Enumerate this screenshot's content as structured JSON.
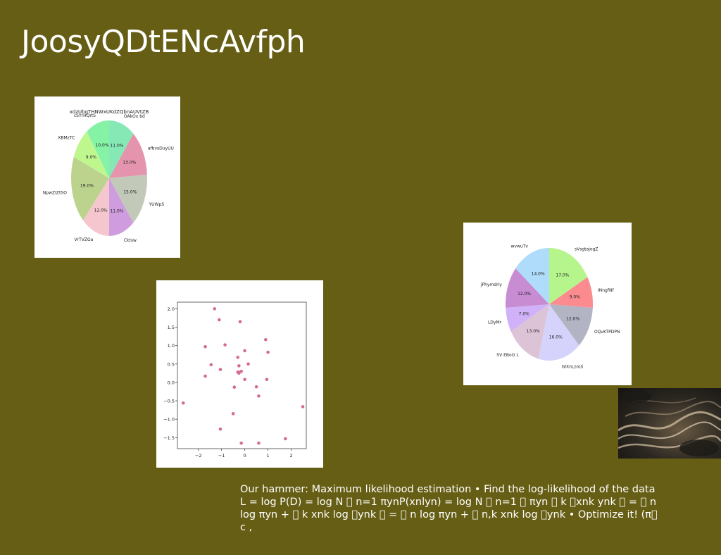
{
  "slide": {
    "title": "JoosyQDtENcAvfph",
    "body": "Our hammer: Maximum likelihood estimation • Find the log-likelihood of the data L = log P(D) = log N ￿ n=1 πynP(xnlyn) = log N ￿ n=1 ￿ πyn ￿ k ￿xnk ynk ￿ = ￿ n log πyn + ￿ k xnk log ￿ynk ￿ = ￿ n log πyn + ￿ n,k xnk log ￿ynk • Optimize it! (π￿ c ,"
  },
  "chart_data": [
    {
      "type": "pie",
      "title": "xdzUbgTHNWxUKdZQbnAUVtZB",
      "labels": [
        "OAkOx bd",
        "afbvsDuyUU",
        "YUWpS",
        "Cktsw",
        "VrTVZGa",
        "NpwZIZtSO",
        "XBMzTC",
        "cSYrHQrtS"
      ],
      "values": [
        11.0,
        13.0,
        15.0,
        11.0,
        12.0,
        19.0,
        9.0,
        10.0
      ],
      "autopct": [
        "11.0%",
        "13.0%",
        "15.0%",
        "11.0%",
        "12.0%",
        "19.0%",
        "9.0%",
        "10.0%"
      ],
      "colors": [
        "#86e8b4",
        "#e494ac",
        "#c2c9b8",
        "#cf9ddf",
        "#f5c6ce",
        "#bcd38e",
        "#bff78f",
        "#86f2a5"
      ]
    },
    {
      "type": "scatter",
      "title": "",
      "xlabel": "",
      "ylabel": "",
      "xlim": [
        -2.9,
        2.65
      ],
      "ylim": [
        -1.8,
        2.18
      ],
      "xticks": [
        -2,
        -1,
        0,
        1,
        2
      ],
      "xtick_labels": [
        "−2",
        "−1",
        "0",
        "1",
        "2"
      ],
      "yticks": [
        2.0,
        1.5,
        1.0,
        0.5,
        0.0,
        -0.5,
        -1.0,
        -1.5
      ],
      "ytick_labels": [
        "2.0",
        "1.5",
        "1.0",
        "0.5",
        "0.0",
        "−0.5",
        "−1.0",
        "−1.5"
      ],
      "marker_color": "#d66a96",
      "x": [
        -1.3,
        -1.1,
        -0.2,
        -0.85,
        -1.7,
        -1.45,
        -1.05,
        -1.7,
        0.9,
        1.0,
        0.0,
        -0.3,
        0.15,
        -0.25,
        -0.3,
        -0.25,
        -0.15,
        -0.25,
        0.0,
        0.95,
        -0.45,
        0.5,
        0.6,
        -2.65,
        -0.5,
        2.5,
        -1.05,
        1.75,
        -0.15,
        0.6
      ],
      "y": [
        2.0,
        1.7,
        1.65,
        1.02,
        0.97,
        0.48,
        0.35,
        0.17,
        1.16,
        0.82,
        0.86,
        0.68,
        0.5,
        0.45,
        0.28,
        0.25,
        0.3,
        0.27,
        0.08,
        0.08,
        -0.13,
        -0.12,
        -0.37,
        -0.56,
        -0.85,
        -0.66,
        -1.27,
        -1.53,
        -1.65,
        -1.65
      ]
    },
    {
      "type": "pie",
      "title": "",
      "labels": [
        "sVsgtajogZ",
        "INngfNf",
        "OQvKTPDPN",
        "GIXnLzoUi",
        "SV EBoO L",
        "LDyMr",
        "jPhymdriy",
        "wvwuTv"
      ],
      "values": [
        17.0,
        9.0,
        12.0,
        16.0,
        13.0,
        7.0,
        12.0,
        14.0
      ],
      "autopct": [
        "17.0%",
        "9.0%",
        "12.0%",
        "16.0%",
        "13.0%",
        "7.0%",
        "12.0%",
        "14.0%"
      ],
      "colors": [
        "#b6f58c",
        "#fb8b8f",
        "#b3b4c3",
        "#d5d3fb",
        "#dcc4d6",
        "#d1b2f9",
        "#c88cd3",
        "#afdcfa"
      ]
    }
  ]
}
